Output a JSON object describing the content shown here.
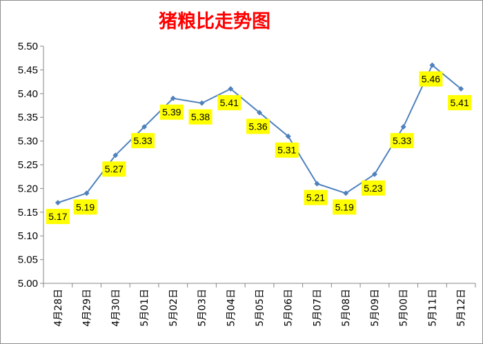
{
  "chart_data": {
    "type": "line",
    "title": "猪粮比走势图",
    "xlabel": "",
    "ylabel": "",
    "ylim": [
      5.0,
      5.5
    ],
    "yticks": [
      "5.50",
      "5.45",
      "5.40",
      "5.35",
      "5.30",
      "5.25",
      "5.20",
      "5.15",
      "5.10",
      "5.05",
      "5.00"
    ],
    "categories": [
      "4月28日",
      "4月29日",
      "4月30日",
      "5月01日",
      "5月02日",
      "5月03日",
      "5月04日",
      "5月05日",
      "5月06日",
      "5月07日",
      "5月08日",
      "5月09日",
      "5月00日",
      "5月11日",
      "5月12日"
    ],
    "values": [
      5.17,
      5.19,
      5.27,
      5.33,
      5.39,
      5.38,
      5.41,
      5.36,
      5.31,
      5.21,
      5.19,
      5.23,
      5.33,
      5.46,
      5.41
    ],
    "data_labels": [
      "5.17",
      "5.19",
      "5.27",
      "5.33",
      "5.39",
      "5.38",
      "5.41",
      "5.36",
      "5.31",
      "5.21",
      "5.19",
      "5.23",
      "5.33",
      "5.46",
      "5.41"
    ],
    "grid": false,
    "legend": "none",
    "colors": {
      "line": "#4f81bd",
      "label_bg": "#ffff00",
      "title": "#ff0000"
    }
  }
}
